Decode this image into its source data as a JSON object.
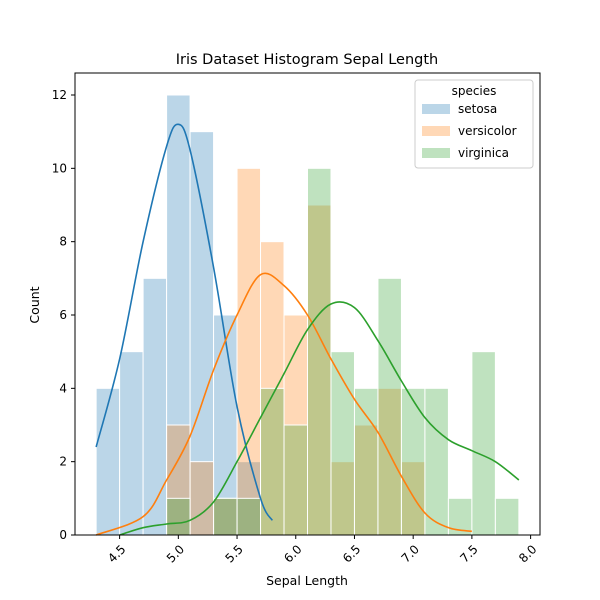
{
  "chart_data": {
    "type": "bar",
    "title": "Iris Dataset Histogram Sepal Length",
    "xlabel": "Sepal Length",
    "ylabel": "Count",
    "xlim": [
      4.12,
      8.08
    ],
    "ylim": [
      0,
      12.6
    ],
    "xticks": [
      "4.5",
      "5.0",
      "5.5",
      "6.0",
      "6.5",
      "7.0",
      "7.5",
      "8.0"
    ],
    "xtick_values": [
      4.5,
      5.0,
      5.5,
      6.0,
      6.5,
      7.0,
      7.5,
      8.0
    ],
    "yticks": [
      "0",
      "2",
      "4",
      "6",
      "8",
      "10",
      "12"
    ],
    "ytick_values": [
      0,
      2,
      4,
      6,
      8,
      10,
      12
    ],
    "bin_edges": [
      4.3,
      4.5,
      4.7,
      4.9,
      5.1,
      5.3,
      5.5,
      5.7,
      5.9,
      6.1,
      6.3,
      6.5,
      6.7,
      6.9,
      7.1,
      7.3,
      7.5,
      7.7,
      7.9
    ],
    "legend": {
      "title": "species",
      "position": "upper right"
    },
    "series": [
      {
        "name": "setosa",
        "color": "#1f77b4",
        "counts": [
          4,
          5,
          7,
          12,
          11,
          6,
          2,
          0,
          0,
          0,
          0,
          0,
          0,
          0,
          0,
          0,
          0,
          0
        ],
        "kde": [
          [
            4.3,
            2.4
          ],
          [
            4.5,
            4.8
          ],
          [
            4.7,
            8.0
          ],
          [
            4.9,
            10.6
          ],
          [
            5.0,
            11.2
          ],
          [
            5.1,
            10.5
          ],
          [
            5.3,
            7.3
          ],
          [
            5.5,
            3.5
          ],
          [
            5.7,
            1.0
          ],
          [
            5.8,
            0.4
          ]
        ]
      },
      {
        "name": "versicolor",
        "color": "#ff7f0e",
        "counts": [
          0,
          0,
          0,
          3,
          2,
          1,
          10,
          8,
          6,
          9,
          2,
          3,
          4,
          2,
          0,
          0,
          0,
          0
        ],
        "kde": [
          [
            4.3,
            0.0
          ],
          [
            4.7,
            0.5
          ],
          [
            4.9,
            1.5
          ],
          [
            5.1,
            2.7
          ],
          [
            5.3,
            4.5
          ],
          [
            5.5,
            6.0
          ],
          [
            5.7,
            7.1
          ],
          [
            5.9,
            6.8
          ],
          [
            6.1,
            6.0
          ],
          [
            6.3,
            4.8
          ],
          [
            6.5,
            3.7
          ],
          [
            6.7,
            2.8
          ],
          [
            6.9,
            1.6
          ],
          [
            7.1,
            0.6
          ],
          [
            7.3,
            0.2
          ],
          [
            7.5,
            0.1
          ]
        ]
      },
      {
        "name": "virginica",
        "color": "#2ca02c",
        "counts": [
          0,
          0,
          0,
          1,
          0,
          1,
          1,
          4,
          3,
          10,
          5,
          4,
          7,
          4,
          4,
          1,
          5,
          1
        ],
        "kde": [
          [
            4.5,
            0.0
          ],
          [
            4.7,
            0.2
          ],
          [
            4.9,
            0.3
          ],
          [
            5.1,
            0.4
          ],
          [
            5.3,
            0.9
          ],
          [
            5.5,
            2.0
          ],
          [
            5.7,
            3.2
          ],
          [
            5.9,
            4.4
          ],
          [
            6.1,
            5.6
          ],
          [
            6.3,
            6.3
          ],
          [
            6.5,
            6.2
          ],
          [
            6.7,
            5.3
          ],
          [
            6.9,
            4.2
          ],
          [
            7.1,
            3.2
          ],
          [
            7.3,
            2.6
          ],
          [
            7.5,
            2.3
          ],
          [
            7.7,
            2.0
          ],
          [
            7.9,
            1.5
          ]
        ]
      }
    ]
  }
}
